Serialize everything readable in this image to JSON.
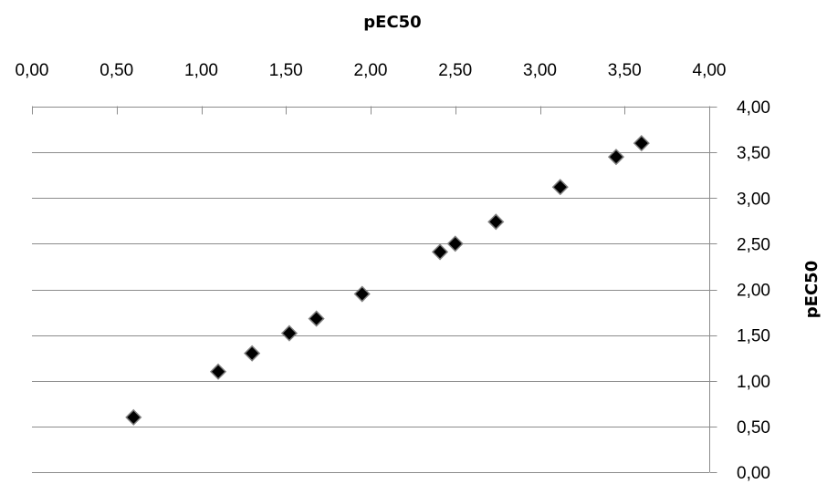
{
  "chart_data": {
    "type": "scatter",
    "title": "",
    "xlabel": "pEC50",
    "ylabel": "pEC50",
    "x_axis_position": "top",
    "y_axis_position": "right",
    "xlim": [
      0,
      4
    ],
    "ylim": [
      0,
      4
    ],
    "x_ticks": [
      "0,00",
      "0,50",
      "1,00",
      "1,50",
      "2,00",
      "2,50",
      "3,00",
      "3,50",
      "4,00"
    ],
    "y_ticks": [
      "0,00",
      "0,50",
      "1,00",
      "1,50",
      "2,00",
      "2,50",
      "3,00",
      "3,50",
      "4,00"
    ],
    "grid": "horizontal",
    "marker": "diamond",
    "marker_color": "#000000",
    "points": [
      {
        "x": 0.6,
        "y": 0.6
      },
      {
        "x": 1.1,
        "y": 1.1
      },
      {
        "x": 1.3,
        "y": 1.3
      },
      {
        "x": 1.52,
        "y": 1.52
      },
      {
        "x": 1.68,
        "y": 1.68
      },
      {
        "x": 1.95,
        "y": 1.95
      },
      {
        "x": 2.41,
        "y": 2.41
      },
      {
        "x": 2.5,
        "y": 2.5
      },
      {
        "x": 2.74,
        "y": 2.74
      },
      {
        "x": 3.12,
        "y": 3.12
      },
      {
        "x": 3.45,
        "y": 3.45
      },
      {
        "x": 3.6,
        "y": 3.6
      }
    ]
  }
}
